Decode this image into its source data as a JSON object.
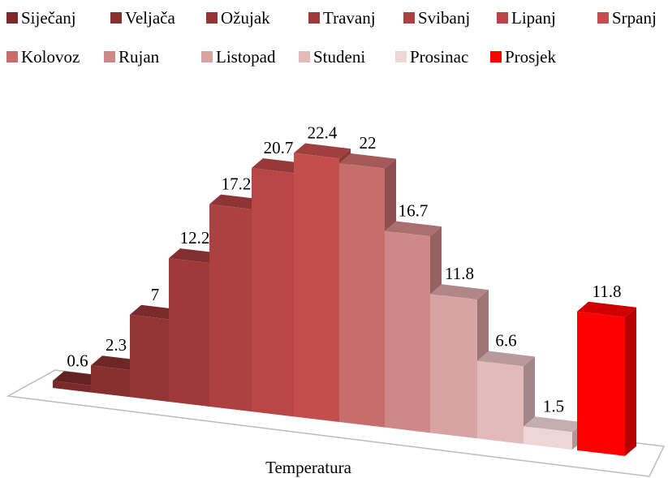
{
  "chart_data": {
    "type": "bar3d",
    "categories": [
      "Temperatura"
    ],
    "series": [
      {
        "name": "Siječanj",
        "color": "#7a2a2a",
        "values": [
          0.6
        ]
      },
      {
        "name": "Veljača",
        "color": "#86302f",
        "values": [
          2.3
        ]
      },
      {
        "name": "Ožujak",
        "color": "#933535",
        "values": [
          7
        ]
      },
      {
        "name": "Travanj",
        "color": "#a03a3a",
        "values": [
          12.2
        ]
      },
      {
        "name": "Svibanj",
        "color": "#ad4040",
        "values": [
          17.2
        ]
      },
      {
        "name": "Lipanj",
        "color": "#b94646",
        "values": [
          20.7
        ]
      },
      {
        "name": "Srpanj",
        "color": "#c34e4c",
        "values": [
          22.4
        ]
      },
      {
        "name": "Kolovoz",
        "color": "#c76e6d",
        "values": [
          22
        ]
      },
      {
        "name": "Rujan",
        "color": "#cf8888",
        "values": [
          16.7
        ]
      },
      {
        "name": "Listopad",
        "color": "#d8a3a3",
        "values": [
          11.8
        ]
      },
      {
        "name": "Studeni",
        "color": "#e2baba",
        "values": [
          6.6
        ]
      },
      {
        "name": "Prosinac",
        "color": "#eed6d6",
        "values": [
          1.5
        ]
      },
      {
        "name": "Prosjek",
        "color": "#ff0000",
        "values": [
          11.8
        ]
      }
    ]
  }
}
